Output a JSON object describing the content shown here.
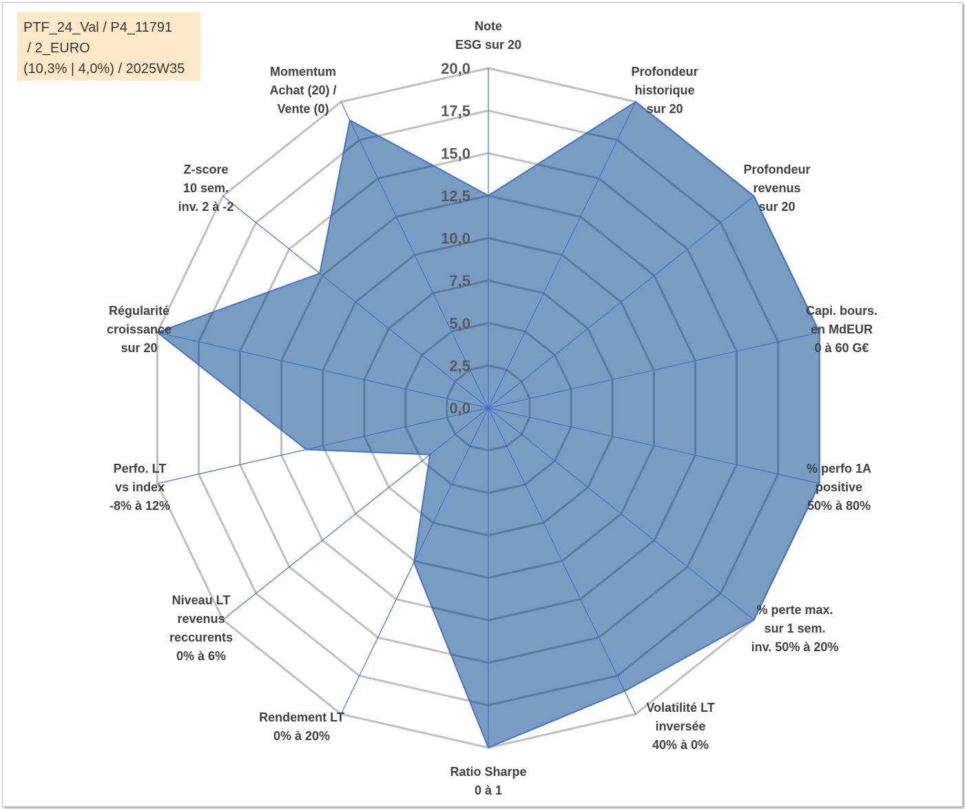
{
  "title_box": {
    "lines": [
      "PTF_24_Val / P4_11791",
      " / 2_EURO",
      "(10,3% | 4,0%) / 2025W35"
    ]
  },
  "chart_data": {
    "type": "radar",
    "rmin": 0,
    "rmax": 20,
    "grid": true,
    "tick_labels": [
      "0,0",
      "2,5",
      "5,0",
      "7,5",
      "10,0",
      "12,5",
      "15,0",
      "17,5",
      "20,0"
    ],
    "axes": [
      {
        "label": [
          "Note",
          "ESG sur 20"
        ],
        "value": 12.5
      },
      {
        "label": [
          "Profondeur",
          "historique",
          "sur 20"
        ],
        "value": 20
      },
      {
        "label": [
          "Profondeur",
          "revenus",
          "sur 20"
        ],
        "value": 20
      },
      {
        "label": [
          "Capi. bours.",
          "en MdEUR",
          "0 à 60 G€"
        ],
        "value": 20
      },
      {
        "label": [
          "% perfo 1A",
          "positive",
          "50% à 80%"
        ],
        "value": 20
      },
      {
        "label": [
          "% perte max.",
          "sur 1 sem.",
          "inv. 50% à 20%"
        ],
        "value": 20
      },
      {
        "label": [
          "Volatilité LT",
          "inversée",
          "40% à 0%"
        ],
        "value": 18.5
      },
      {
        "label": [
          "Ratio Sharpe",
          "0 à 1"
        ],
        "value": 20
      },
      {
        "label": [
          "Rendement LT",
          "0% à 20%"
        ],
        "value": 10.1
      },
      {
        "label": [
          "Niveau LT",
          "revenus",
          "reccurents",
          "0% à 6%"
        ],
        "value": 4.4
      },
      {
        "label": [
          "Perfo. LT",
          "vs index",
          "-8% à 12%"
        ],
        "value": 11.0
      },
      {
        "label": [
          "Régularité",
          "croissance",
          "sur 20"
        ],
        "value": 20
      },
      {
        "label": [
          "Z-score",
          "10 sem.",
          "inv. 2 à -2"
        ],
        "value": 12.7
      },
      {
        "label": [
          "Momentum",
          "Achat (20) /",
          "Vente (0)"
        ],
        "value": 18.8
      }
    ],
    "colors": {
      "fill": "#5b86b6",
      "stroke": "#4472c4",
      "grid": "#bfbfbf",
      "inner_grid": "#3d5f8e"
    }
  }
}
